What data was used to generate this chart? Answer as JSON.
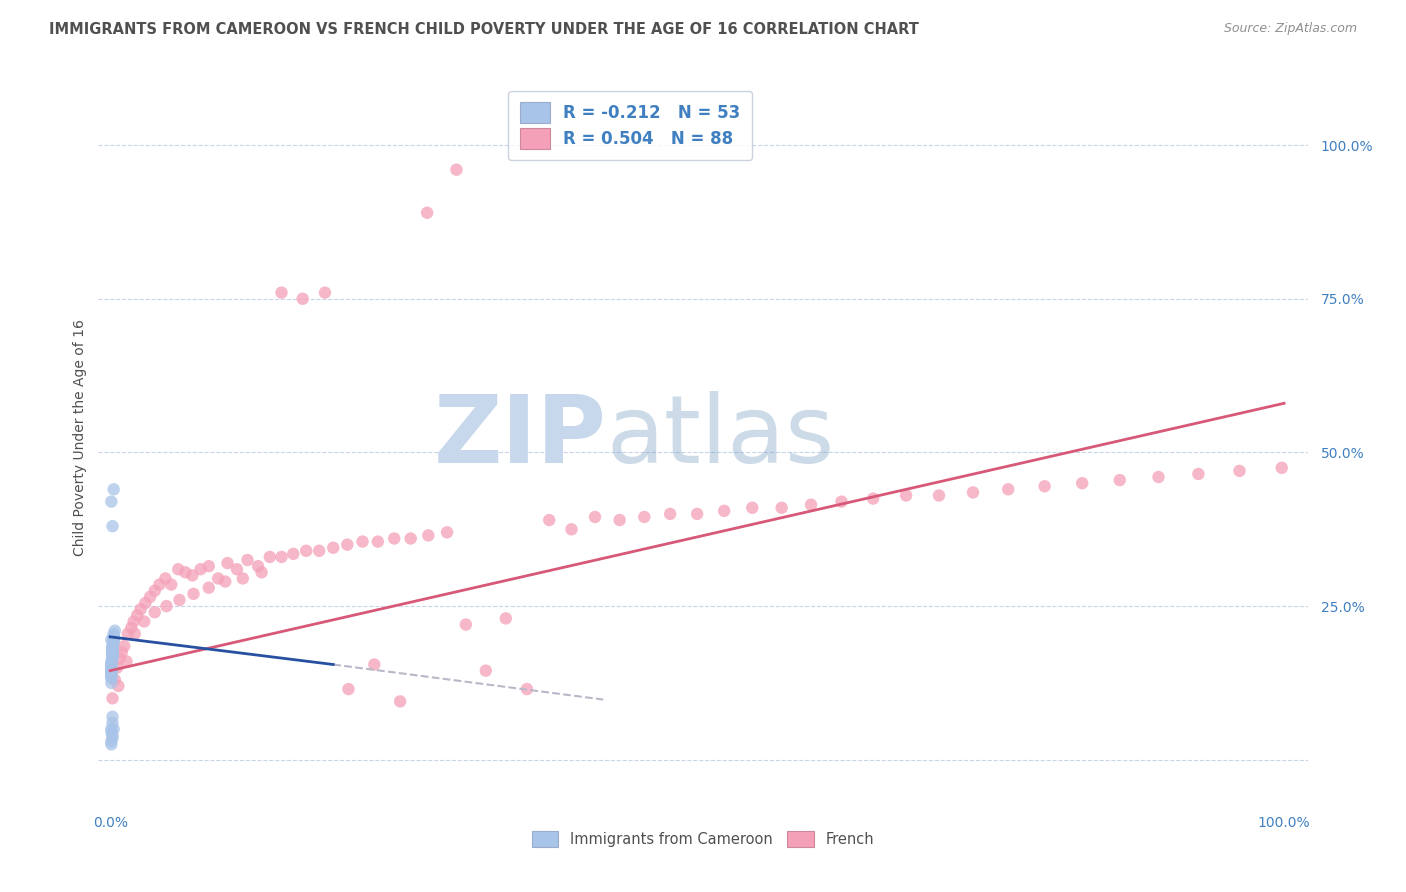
{
  "title": "IMMIGRANTS FROM CAMEROON VS FRENCH CHILD POVERTY UNDER THE AGE OF 16 CORRELATION CHART",
  "source": "Source: ZipAtlas.com",
  "ylabel": "Child Poverty Under the Age of 16",
  "xlim": [
    -0.01,
    1.02
  ],
  "ylim": [
    -0.07,
    1.12
  ],
  "blue_R": -0.212,
  "blue_N": 53,
  "pink_R": 0.504,
  "pink_N": 88,
  "blue_color": "#a8c4e8",
  "pink_color": "#f4a0b8",
  "blue_line_color": "#2850a0",
  "pink_line_color": "#d85878",
  "dashed_line_color": "#b8b8c8",
  "grid_color": "#c8d4e8",
  "watermark_zip_color": "#c8d8ec",
  "watermark_atlas_color": "#7098c0",
  "title_color": "#505050",
  "source_color": "#909090",
  "tick_label_color": "#4080c0",
  "ylabel_color": "#505050",
  "blue_scatter_x": [
    0.001,
    0.002,
    0.001,
    0.003,
    0.002,
    0.001,
    0.004,
    0.002,
    0.001,
    0.003,
    0.002,
    0.001,
    0.003,
    0.002,
    0.001,
    0.002,
    0.003,
    0.001,
    0.002,
    0.001,
    0.003,
    0.002,
    0.001,
    0.002,
    0.001,
    0.003,
    0.002,
    0.001,
    0.002,
    0.001,
    0.002,
    0.001,
    0.003,
    0.002,
    0.001,
    0.002,
    0.001,
    0.002,
    0.001,
    0.003,
    0.002,
    0.001,
    0.002,
    0.001,
    0.003,
    0.002,
    0.002,
    0.001,
    0.003,
    0.001,
    0.002,
    0.001,
    0.002
  ],
  "blue_scatter_y": [
    0.195,
    0.175,
    0.16,
    0.205,
    0.185,
    0.155,
    0.21,
    0.18,
    0.145,
    0.2,
    0.17,
    0.14,
    0.195,
    0.165,
    0.135,
    0.175,
    0.19,
    0.15,
    0.185,
    0.125,
    0.2,
    0.17,
    0.145,
    0.18,
    0.155,
    0.195,
    0.175,
    0.148,
    0.183,
    0.138,
    0.178,
    0.143,
    0.198,
    0.173,
    0.133,
    0.172,
    0.142,
    0.177,
    0.147,
    0.197,
    0.167,
    0.045,
    0.06,
    0.03,
    0.05,
    0.04,
    0.38,
    0.42,
    0.44,
    0.05,
    0.035,
    0.025,
    0.07
  ],
  "pink_scatter_x": [
    0.002,
    0.004,
    0.006,
    0.008,
    0.01,
    0.012,
    0.015,
    0.018,
    0.02,
    0.023,
    0.026,
    0.03,
    0.034,
    0.038,
    0.042,
    0.047,
    0.052,
    0.058,
    0.064,
    0.07,
    0.077,
    0.084,
    0.092,
    0.1,
    0.108,
    0.117,
    0.126,
    0.136,
    0.146,
    0.156,
    0.167,
    0.178,
    0.19,
    0.202,
    0.215,
    0.228,
    0.242,
    0.256,
    0.271,
    0.287,
    0.303,
    0.32,
    0.337,
    0.355,
    0.374,
    0.393,
    0.413,
    0.434,
    0.455,
    0.477,
    0.5,
    0.523,
    0.547,
    0.572,
    0.597,
    0.623,
    0.65,
    0.678,
    0.706,
    0.735,
    0.765,
    0.796,
    0.828,
    0.86,
    0.893,
    0.927,
    0.962,
    0.998,
    0.007,
    0.014,
    0.021,
    0.029,
    0.038,
    0.048,
    0.059,
    0.071,
    0.084,
    0.098,
    0.113,
    0.129,
    0.146,
    0.164,
    0.183,
    0.203,
    0.225,
    0.247,
    0.27,
    0.295
  ],
  "pink_scatter_y": [
    0.1,
    0.13,
    0.15,
    0.165,
    0.175,
    0.185,
    0.205,
    0.215,
    0.225,
    0.235,
    0.245,
    0.255,
    0.265,
    0.275,
    0.285,
    0.295,
    0.285,
    0.31,
    0.305,
    0.3,
    0.31,
    0.315,
    0.295,
    0.32,
    0.31,
    0.325,
    0.315,
    0.33,
    0.33,
    0.335,
    0.34,
    0.34,
    0.345,
    0.35,
    0.355,
    0.355,
    0.36,
    0.36,
    0.365,
    0.37,
    0.22,
    0.145,
    0.23,
    0.115,
    0.39,
    0.375,
    0.395,
    0.39,
    0.395,
    0.4,
    0.4,
    0.405,
    0.41,
    0.41,
    0.415,
    0.42,
    0.425,
    0.43,
    0.43,
    0.435,
    0.44,
    0.445,
    0.45,
    0.455,
    0.46,
    0.465,
    0.47,
    0.475,
    0.12,
    0.16,
    0.205,
    0.225,
    0.24,
    0.25,
    0.26,
    0.27,
    0.28,
    0.29,
    0.295,
    0.305,
    0.76,
    0.75,
    0.76,
    0.115,
    0.155,
    0.095,
    0.89,
    0.96
  ],
  "blue_line_x0": 0.0,
  "blue_line_x1": 0.19,
  "blue_line_y0": 0.2,
  "blue_line_y1": 0.155,
  "dash_line_x0": 0.19,
  "dash_line_x1": 0.42,
  "dash_line_y0": 0.155,
  "dash_line_y1": 0.098,
  "pink_line_x0": 0.0,
  "pink_line_x1": 1.0,
  "pink_line_y0": 0.145,
  "pink_line_y1": 0.58
}
